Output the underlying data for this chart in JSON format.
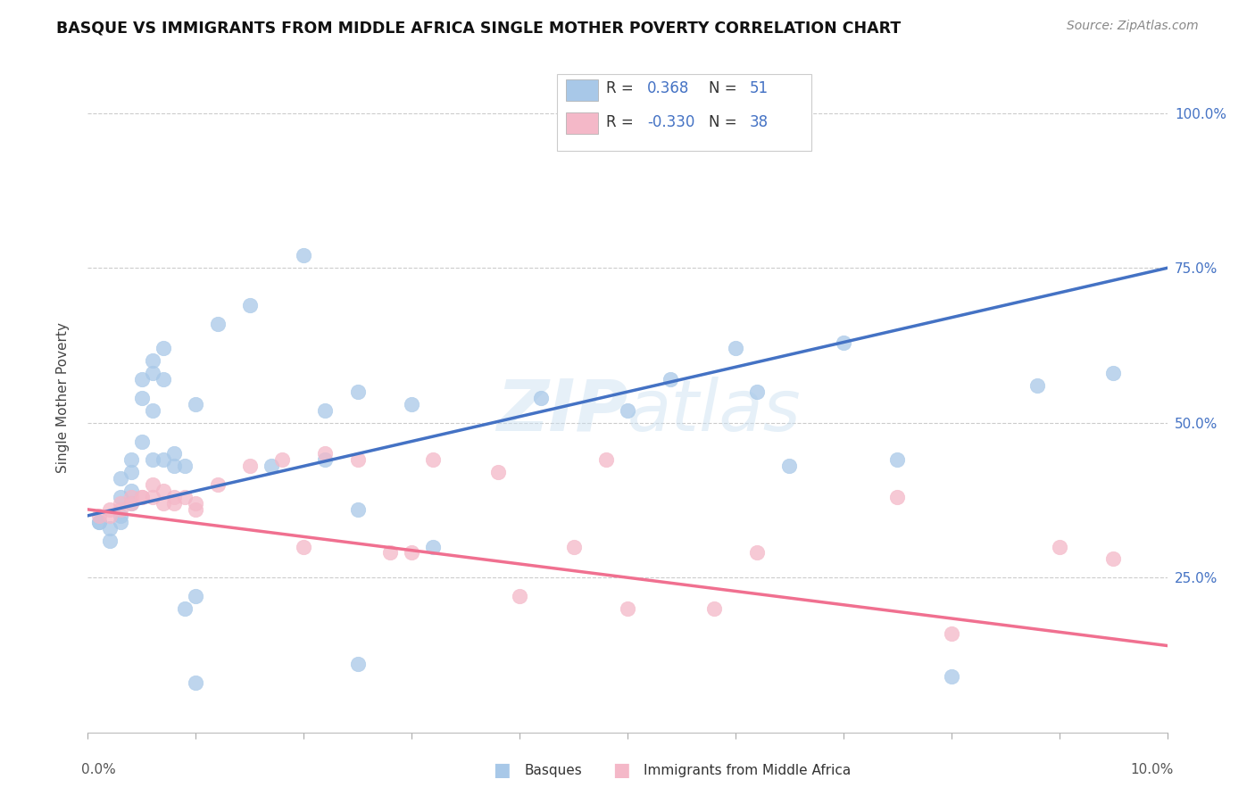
{
  "title": "BASQUE VS IMMIGRANTS FROM MIDDLE AFRICA SINGLE MOTHER POVERTY CORRELATION CHART",
  "source": "Source: ZipAtlas.com",
  "ylabel": "Single Mother Poverty",
  "legend_labels": [
    "Basques",
    "Immigrants from Middle Africa"
  ],
  "r_basque": 0.368,
  "n_basque": 51,
  "r_immigrant": -0.33,
  "n_immigrant": 38,
  "basque_color": "#a8c8e8",
  "immigrant_color": "#f4b8c8",
  "basque_line_color": "#4472c4",
  "immigrant_line_color": "#f07090",
  "watermark": "ZIPatlas",
  "xlim": [
    0.0,
    0.1
  ],
  "ylim": [
    0.0,
    1.08
  ],
  "yticks": [
    0.25,
    0.5,
    0.75,
    1.0
  ],
  "ytick_labels": [
    "25.0%",
    "50.0%",
    "75.0%",
    "100.0%"
  ],
  "blue_line_y0": 0.35,
  "blue_line_y1": 0.75,
  "pink_line_y0": 0.36,
  "pink_line_y1": 0.14,
  "basque_x": [
    0.001,
    0.001,
    0.002,
    0.002,
    0.003,
    0.003,
    0.003,
    0.003,
    0.004,
    0.004,
    0.004,
    0.004,
    0.005,
    0.005,
    0.005,
    0.006,
    0.006,
    0.006,
    0.006,
    0.007,
    0.007,
    0.007,
    0.008,
    0.008,
    0.009,
    0.009,
    0.01,
    0.01,
    0.01,
    0.012,
    0.015,
    0.017,
    0.02,
    0.022,
    0.022,
    0.025,
    0.025,
    0.025,
    0.03,
    0.032,
    0.042,
    0.05,
    0.054,
    0.06,
    0.062,
    0.065,
    0.07,
    0.075,
    0.08,
    0.088,
    0.095
  ],
  "basque_y": [
    0.34,
    0.34,
    0.33,
    0.31,
    0.41,
    0.38,
    0.35,
    0.34,
    0.44,
    0.42,
    0.39,
    0.37,
    0.57,
    0.54,
    0.47,
    0.6,
    0.58,
    0.52,
    0.44,
    0.62,
    0.57,
    0.44,
    0.45,
    0.43,
    0.43,
    0.2,
    0.22,
    0.53,
    0.08,
    0.66,
    0.69,
    0.43,
    0.77,
    0.52,
    0.44,
    0.36,
    0.55,
    0.11,
    0.53,
    0.3,
    0.54,
    0.52,
    0.57,
    0.62,
    0.55,
    0.43,
    0.63,
    0.44,
    0.09,
    0.56,
    0.58
  ],
  "immigrant_x": [
    0.001,
    0.002,
    0.002,
    0.003,
    0.003,
    0.004,
    0.004,
    0.005,
    0.005,
    0.006,
    0.006,
    0.007,
    0.007,
    0.008,
    0.008,
    0.009,
    0.01,
    0.01,
    0.012,
    0.015,
    0.018,
    0.02,
    0.022,
    0.025,
    0.028,
    0.03,
    0.032,
    0.038,
    0.04,
    0.045,
    0.048,
    0.05,
    0.058,
    0.062,
    0.075,
    0.08,
    0.09,
    0.095
  ],
  "immigrant_y": [
    0.35,
    0.36,
    0.35,
    0.37,
    0.36,
    0.38,
    0.37,
    0.38,
    0.38,
    0.4,
    0.38,
    0.39,
    0.37,
    0.38,
    0.37,
    0.38,
    0.36,
    0.37,
    0.4,
    0.43,
    0.44,
    0.3,
    0.45,
    0.44,
    0.29,
    0.29,
    0.44,
    0.42,
    0.22,
    0.3,
    0.44,
    0.2,
    0.2,
    0.29,
    0.38,
    0.16,
    0.3,
    0.28
  ]
}
